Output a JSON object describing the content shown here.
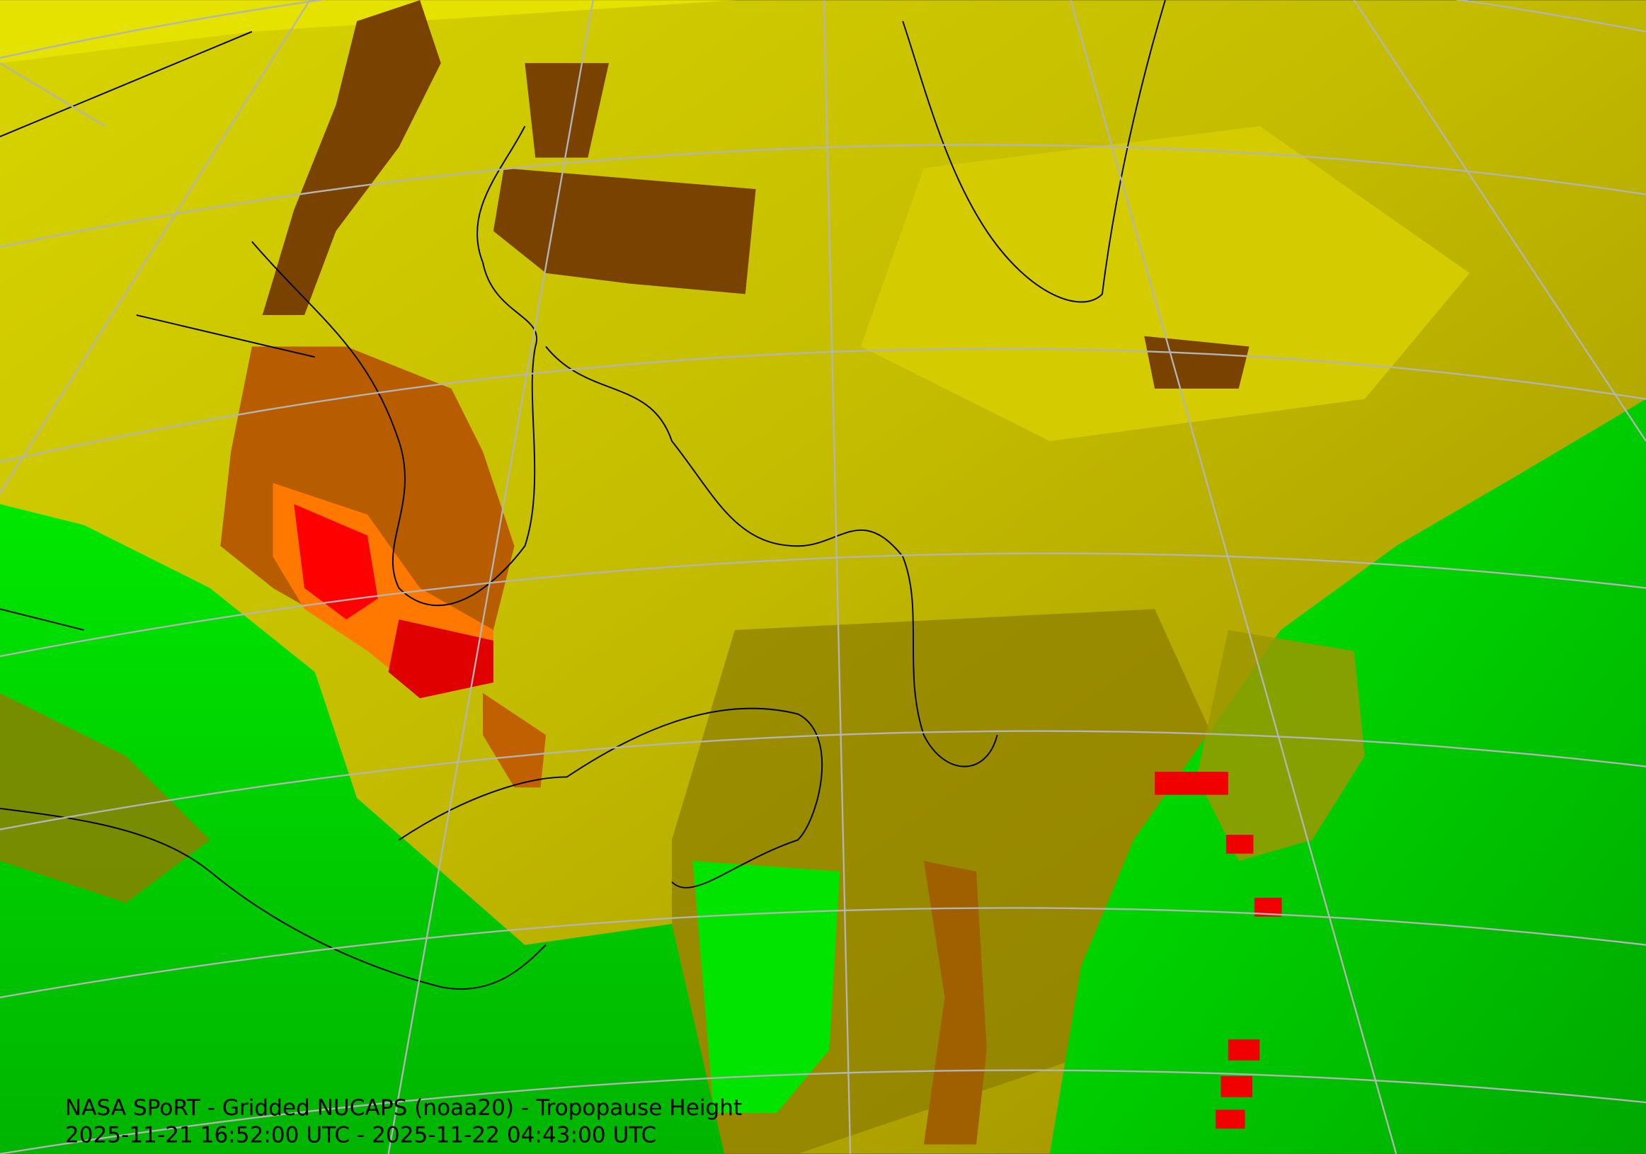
{
  "caption": {
    "title": "NASA SPoRT - Gridded NUCAPS (noaa20) - Tropopause Height",
    "time_range": "2025-11-21 16:52:00 UTC - 2025-11-22 04:43:00 UTC"
  }
}
